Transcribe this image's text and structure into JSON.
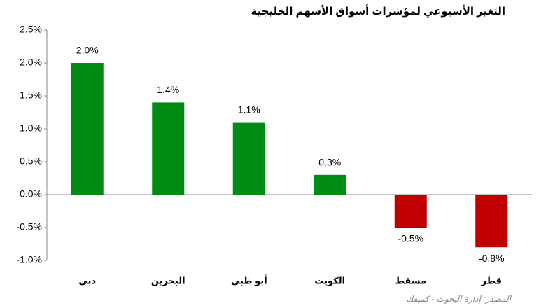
{
  "chart_data": {
    "type": "bar",
    "title": "التغير الأسبوعي لمؤشرات أسواق الأسهم الخليجية",
    "categories": [
      "دبي",
      "البحرين",
      "أبو ظبي",
      "الكويت",
      "مسقط",
      "قطر"
    ],
    "values": [
      2.0,
      1.4,
      1.1,
      0.3,
      -0.5,
      -0.8
    ],
    "value_labels": [
      "2.0%",
      "1.4%",
      "1.1%",
      "0.3%",
      "-0.5%",
      "-0.8%"
    ],
    "colors": [
      "#008c14",
      "#008c14",
      "#008c14",
      "#008c14",
      "#c00000",
      "#c00000"
    ],
    "ylim": [
      -1.0,
      2.5
    ],
    "yticks": [
      {
        "value": 2.5,
        "label": "2.5%"
      },
      {
        "value": 2.0,
        "label": "2.0%"
      },
      {
        "value": 1.5,
        "label": "1.5%"
      },
      {
        "value": 1.0,
        "label": "1.0%"
      },
      {
        "value": 0.5,
        "label": "0.5%"
      },
      {
        "value": 0.0,
        "label": "0.0%"
      },
      {
        "value": -0.5,
        "label": "-0.5%"
      },
      {
        "value": -1.0,
        "label": "-1.0%"
      }
    ],
    "source": "المصدر: إدارة البحوث - كميفك",
    "grid": false
  }
}
